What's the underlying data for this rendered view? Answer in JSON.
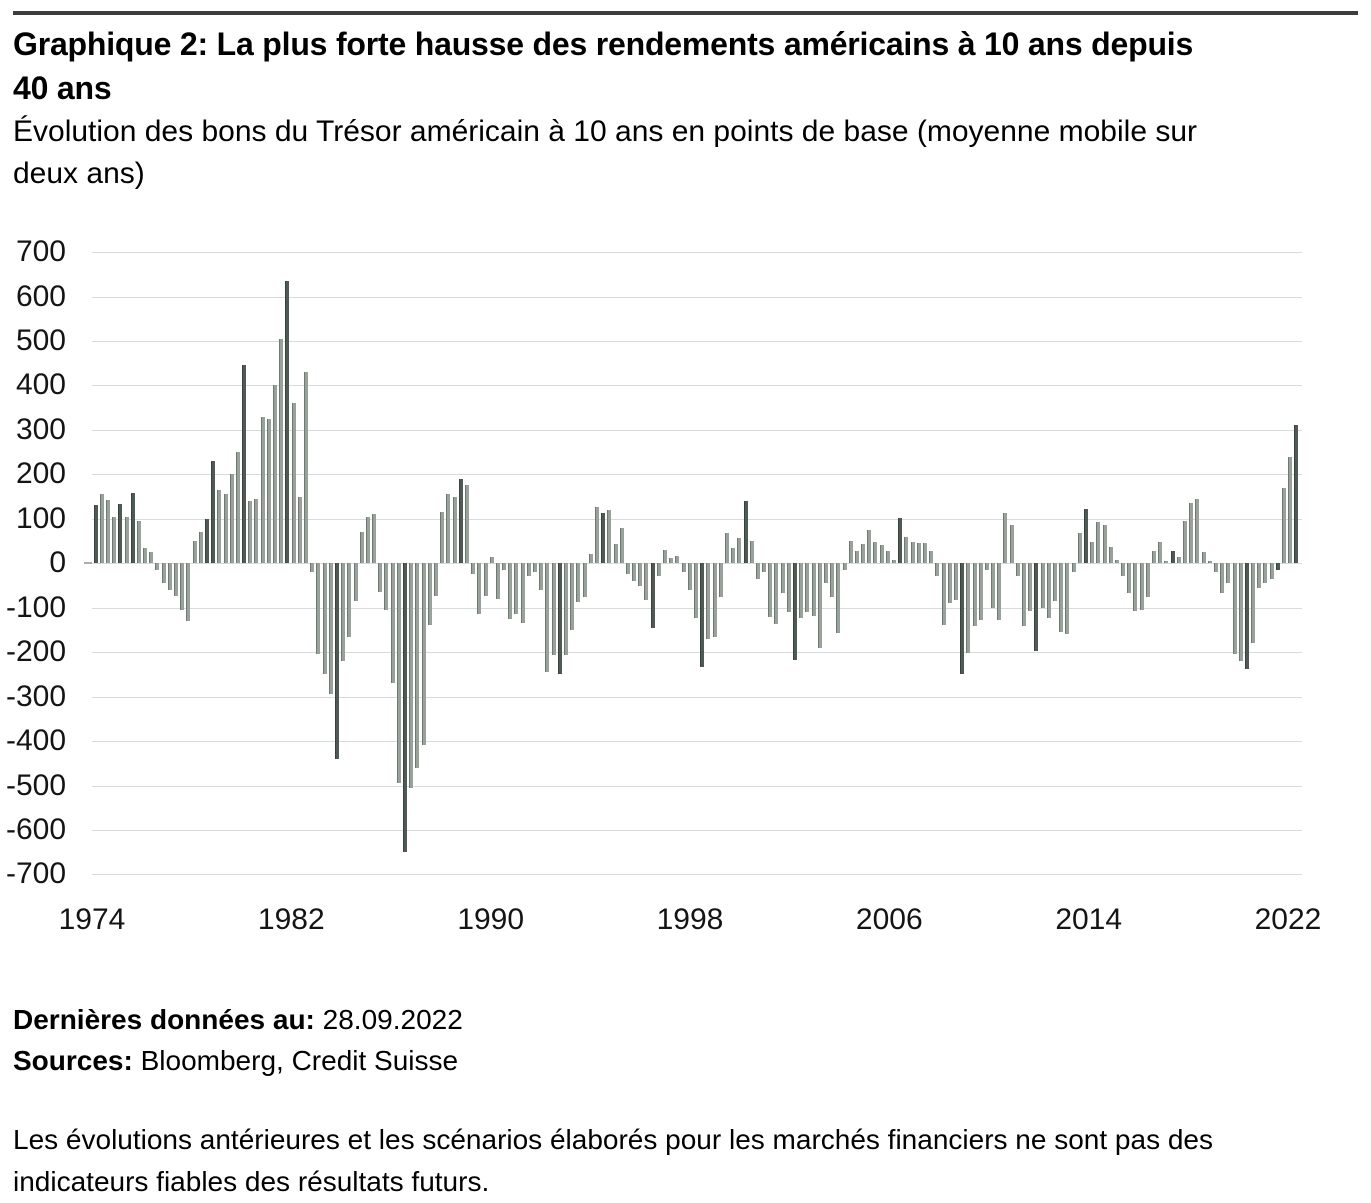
{
  "header": {
    "title_line1": "Graphique 2: La plus forte hausse des rendements américains à 10 ans depuis",
    "title_line2": "40 ans",
    "subtitle_line1": "Évolution des bons du Trésor américain à 10 ans en points de base (moyenne mobile sur",
    "subtitle_line2": "deux ans)"
  },
  "chart_data": {
    "type": "bar",
    "title": "Graphique 2: La plus forte hausse des rendements américains à 10 ans depuis 40 ans",
    "subtitle": "Évolution des bons du Trésor américain à 10 ans en points de base (moyenne mobile sur deux ans)",
    "unit": "points de base",
    "frequency": "quarterly",
    "x_start_year": 1974,
    "x_end_label": "2022",
    "x_tick_labels": [
      "1974",
      "1982",
      "1990",
      "1998",
      "2006",
      "2014",
      "2022"
    ],
    "y_ticks": [
      700,
      600,
      500,
      400,
      300,
      200,
      100,
      0,
      -100,
      -200,
      -300,
      -400,
      -500,
      -600,
      -700
    ],
    "ylim": [
      -700,
      700
    ],
    "grid": "horizontal",
    "legend": "none",
    "bar_color_light": "#98a29b",
    "bar_color_dark": "#4e5a53",
    "gridline_color": "#d7dbe1",
    "values": [
      130,
      155,
      143,
      104,
      133,
      104,
      158,
      95,
      35,
      25,
      -15,
      -45,
      -60,
      -75,
      -105,
      -130,
      50,
      70,
      100,
      230,
      165,
      155,
      200,
      250,
      445,
      140,
      145,
      330,
      325,
      400,
      505,
      635,
      360,
      150,
      430,
      -20,
      -205,
      -250,
      -295,
      -440,
      -220,
      -165,
      -85,
      70,
      105,
      110,
      -65,
      -105,
      -270,
      -495,
      -650,
      -505,
      -460,
      -410,
      -140,
      -75,
      115,
      155,
      150,
      190,
      175,
      -25,
      -115,
      -75,
      15,
      -80,
      -15,
      -125,
      -115,
      -135,
      -30,
      -20,
      -60,
      -245,
      -207,
      -249,
      -207,
      -150,
      -87,
      -77,
      20,
      126,
      112,
      119,
      43,
      79,
      -25,
      -41,
      -51,
      -82,
      -145,
      -30,
      30,
      11,
      17,
      -20,
      -61,
      -124,
      -233,
      -171,
      -166,
      -77,
      69,
      35,
      56,
      140,
      50,
      -35,
      -20,
      -122,
      -137,
      -67,
      -111,
      -218,
      -124,
      -111,
      -119,
      -190,
      -44,
      -77,
      -158,
      -15,
      50,
      27,
      43,
      74,
      48,
      40,
      27,
      8,
      102,
      60,
      48,
      45,
      45,
      27,
      -30,
      -140,
      -90,
      -82,
      -250,
      -202,
      -142,
      -127,
      -15,
      -100,
      -127,
      113,
      85,
      -30,
      -142,
      -107,
      -197,
      -100,
      -124,
      -85,
      -155,
      -160,
      -20,
      69,
      121,
      48,
      92,
      87,
      37,
      8,
      -30,
      -67,
      -108,
      -106,
      -77,
      27,
      48,
      5,
      27,
      15,
      95,
      135,
      145,
      25,
      5,
      -20,
      -67,
      -44,
      -204,
      -221,
      -238,
      -179,
      -56,
      -44,
      -35,
      -15,
      170,
      240,
      310
    ],
    "dark_bar_indices": [
      0,
      4,
      6,
      18,
      19,
      24,
      31,
      39,
      50,
      59,
      75,
      82,
      90,
      98,
      105,
      113,
      130,
      140,
      152,
      160,
      174,
      186,
      191,
      194
    ]
  },
  "footer": {
    "last_data_label": "Dernières données au:",
    "last_data_value": " 28.09.2022",
    "sources_label": "Sources:",
    "sources_value": " Bloomberg, Credit Suisse"
  },
  "disclaimer": {
    "line1": "Les évolutions antérieures et les scénarios élaborés pour les marchés financiers ne sont pas des",
    "line2": "indicateurs fiables des résultats futurs."
  }
}
